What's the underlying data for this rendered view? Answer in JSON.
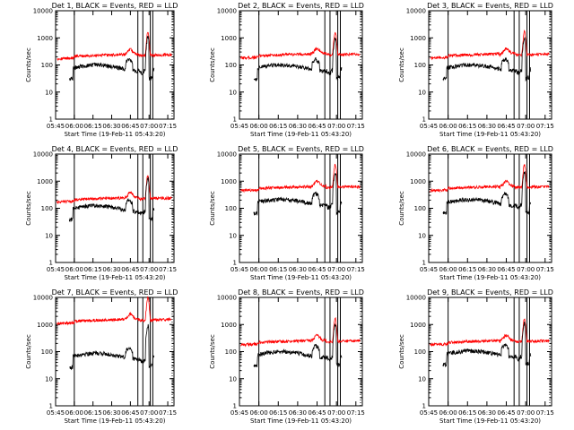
{
  "chart_data": {
    "type": "line",
    "common": {
      "xlabel": "Start Time (19-Feb-11 05:43:20)",
      "ylabel": "Counts/sec",
      "y_scale": "log",
      "ylim": [
        1,
        10000
      ],
      "y_tick_labels": [
        "1",
        "10",
        "100",
        "1000",
        "10000"
      ],
      "xlim": [
        "05:45",
        "07:20"
      ],
      "x_tick_labels": [
        "05:45",
        "06:00",
        "06:15",
        "06:30",
        "06:45",
        "07:00",
        "07:15"
      ],
      "grid": false,
      "series_colors": {
        "events": "#000000",
        "lld": "#ff0000"
      },
      "vertical_markers": [
        "06:00",
        "06:51",
        "06:55",
        "07:01",
        "07:03"
      ],
      "dotted_marker": "07:20"
    },
    "panels": [
      {
        "title": "Det 1, BLACK = Events, RED = LLD",
        "events_base": 80,
        "lld_base": 170
      },
      {
        "title": "Det 2, BLACK = Events, RED = LLD",
        "events_base": 80,
        "lld_base": 180
      },
      {
        "title": "Det 3, BLACK = Events, RED = LLD",
        "events_base": 80,
        "lld_base": 180
      },
      {
        "title": "Det 4, BLACK = Events, RED = LLD",
        "events_base": 100,
        "lld_base": 170
      },
      {
        "title": "Det 5, BLACK = Events, RED = LLD",
        "events_base": 170,
        "lld_base": 450
      },
      {
        "title": "Det 6, BLACK = Events, RED = LLD",
        "events_base": 170,
        "lld_base": 450
      },
      {
        "title": "Det 7, BLACK = Events, RED = LLD",
        "events_base": 70,
        "lld_base": 1100
      },
      {
        "title": "Det 8, BLACK = Events, RED = LLD",
        "events_base": 80,
        "lld_base": 180
      },
      {
        "title": "Det 9, BLACK = Events, RED = LLD",
        "events_base": 85,
        "lld_base": 180
      }
    ]
  }
}
